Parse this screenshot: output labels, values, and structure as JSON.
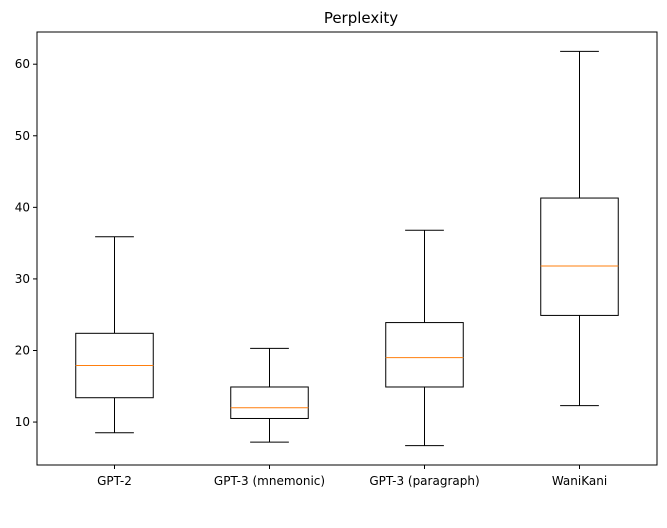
{
  "chart_data": {
    "type": "box",
    "title": "Perplexity",
    "xlabel": "",
    "ylabel": "",
    "ylim": [
      4,
      64.5
    ],
    "yticks": [
      10,
      20,
      30,
      40,
      50,
      60
    ],
    "grid": false,
    "categories": [
      "GPT-2",
      "GPT-3 (mnemonic)",
      "GPT-3 (paragraph)",
      "WaniKani"
    ],
    "boxes": [
      {
        "category": "GPT-2",
        "whisker_low": 8.5,
        "q1": 13.4,
        "median": 17.9,
        "q3": 22.4,
        "whisker_high": 35.9
      },
      {
        "category": "GPT-3 (mnemonic)",
        "whisker_low": 7.2,
        "q1": 10.5,
        "median": 12.0,
        "q3": 14.9,
        "whisker_high": 20.3
      },
      {
        "category": "GPT-3 (paragraph)",
        "whisker_low": 6.7,
        "q1": 14.9,
        "median": 19.0,
        "q3": 23.9,
        "whisker_high": 36.8
      },
      {
        "category": "WaniKani",
        "whisker_low": 12.3,
        "q1": 24.9,
        "median": 31.8,
        "q3": 41.3,
        "whisker_high": 61.8
      }
    ],
    "colors": {
      "box": "#000000",
      "median": "#ff7f0e"
    }
  }
}
